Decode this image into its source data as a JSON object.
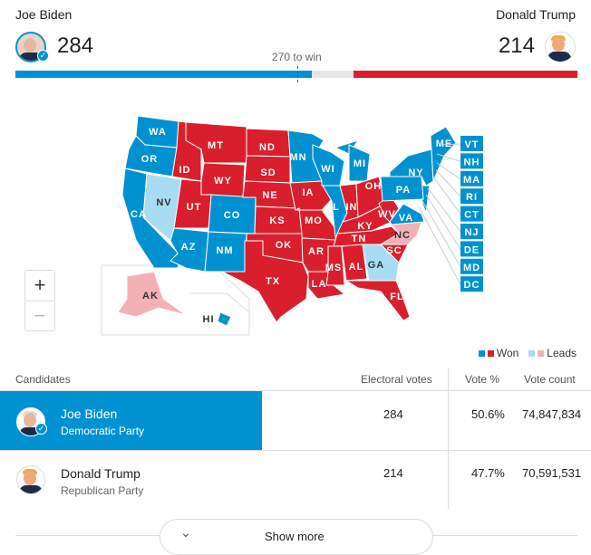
{
  "header": {
    "left": {
      "name": "Joe Biden",
      "electoral": "284",
      "won": true
    },
    "right": {
      "name": "Donald Trump",
      "electoral": "214"
    },
    "threshold_label": "270 to win",
    "progress": {
      "biden_electoral": 284,
      "trump_electoral": 214,
      "total": 538,
      "threshold": 270
    }
  },
  "colors": {
    "dem_won": "#0092d0",
    "rep_won": "#d91f2d",
    "dem_leads": "#a8dcf3",
    "rep_leads": "#f2b1b5",
    "undecided": "#e6e6e6"
  },
  "map": {
    "states": [
      {
        "code": "WA",
        "result": "dem_won"
      },
      {
        "code": "OR",
        "result": "dem_won"
      },
      {
        "code": "CA",
        "result": "dem_won"
      },
      {
        "code": "NV",
        "result": "dem_leads"
      },
      {
        "code": "ID",
        "result": "rep_won"
      },
      {
        "code": "MT",
        "result": "rep_won"
      },
      {
        "code": "WY",
        "result": "rep_won"
      },
      {
        "code": "UT",
        "result": "rep_won"
      },
      {
        "code": "CO",
        "result": "dem_won"
      },
      {
        "code": "AZ",
        "result": "dem_won"
      },
      {
        "code": "NM",
        "result": "dem_won"
      },
      {
        "code": "ND",
        "result": "rep_won"
      },
      {
        "code": "SD",
        "result": "rep_won"
      },
      {
        "code": "NE",
        "result": "rep_won"
      },
      {
        "code": "KS",
        "result": "rep_won"
      },
      {
        "code": "OK",
        "result": "rep_won"
      },
      {
        "code": "TX",
        "result": "rep_won"
      },
      {
        "code": "MN",
        "result": "dem_won"
      },
      {
        "code": "IA",
        "result": "rep_won"
      },
      {
        "code": "MO",
        "result": "rep_won"
      },
      {
        "code": "AR",
        "result": "rep_won"
      },
      {
        "code": "LA",
        "result": "rep_won"
      },
      {
        "code": "WI",
        "result": "dem_won"
      },
      {
        "code": "IL",
        "result": "dem_won"
      },
      {
        "code": "MI",
        "result": "dem_won"
      },
      {
        "code": "IN",
        "result": "rep_won"
      },
      {
        "code": "OH",
        "result": "rep_won"
      },
      {
        "code": "KY",
        "result": "rep_won"
      },
      {
        "code": "TN",
        "result": "rep_won"
      },
      {
        "code": "MS",
        "result": "rep_won"
      },
      {
        "code": "AL",
        "result": "rep_won"
      },
      {
        "code": "GA",
        "result": "dem_leads"
      },
      {
        "code": "FL",
        "result": "rep_won"
      },
      {
        "code": "SC",
        "result": "rep_won"
      },
      {
        "code": "NC",
        "result": "rep_leads"
      },
      {
        "code": "VA",
        "result": "dem_won"
      },
      {
        "code": "WV",
        "result": "rep_won"
      },
      {
        "code": "PA",
        "result": "dem_won"
      },
      {
        "code": "NY",
        "result": "dem_won"
      },
      {
        "code": "ME",
        "result": "dem_won"
      },
      {
        "code": "AK",
        "result": "rep_leads"
      },
      {
        "code": "HI",
        "result": "dem_won"
      }
    ],
    "small_states": [
      {
        "code": "VT",
        "result": "dem_won"
      },
      {
        "code": "NH",
        "result": "dem_won"
      },
      {
        "code": "MA",
        "result": "dem_won"
      },
      {
        "code": "RI",
        "result": "dem_won"
      },
      {
        "code": "CT",
        "result": "dem_won"
      },
      {
        "code": "NJ",
        "result": "dem_won"
      },
      {
        "code": "DE",
        "result": "dem_won"
      },
      {
        "code": "MD",
        "result": "dem_won"
      },
      {
        "code": "DC",
        "result": "dem_won"
      }
    ],
    "zoom_in": "+",
    "zoom_out": "−"
  },
  "legend": {
    "won": "Won",
    "leads": "Leads"
  },
  "table": {
    "headers": {
      "candidates": "Candidates",
      "electoral": "Electoral votes",
      "vote_pct": "Vote %",
      "vote_count": "Vote count"
    },
    "rows": [
      {
        "name": "Joe Biden",
        "party": "Democratic Party",
        "electoral": "284",
        "vote_pct": "50.6%",
        "vote_count": "74,847,834",
        "winner": true
      },
      {
        "name": "Donald Trump",
        "party": "Republican Party",
        "electoral": "214",
        "vote_pct": "47.7%",
        "vote_count": "70,591,531",
        "winner": false
      }
    ],
    "show_more": "Show more"
  }
}
